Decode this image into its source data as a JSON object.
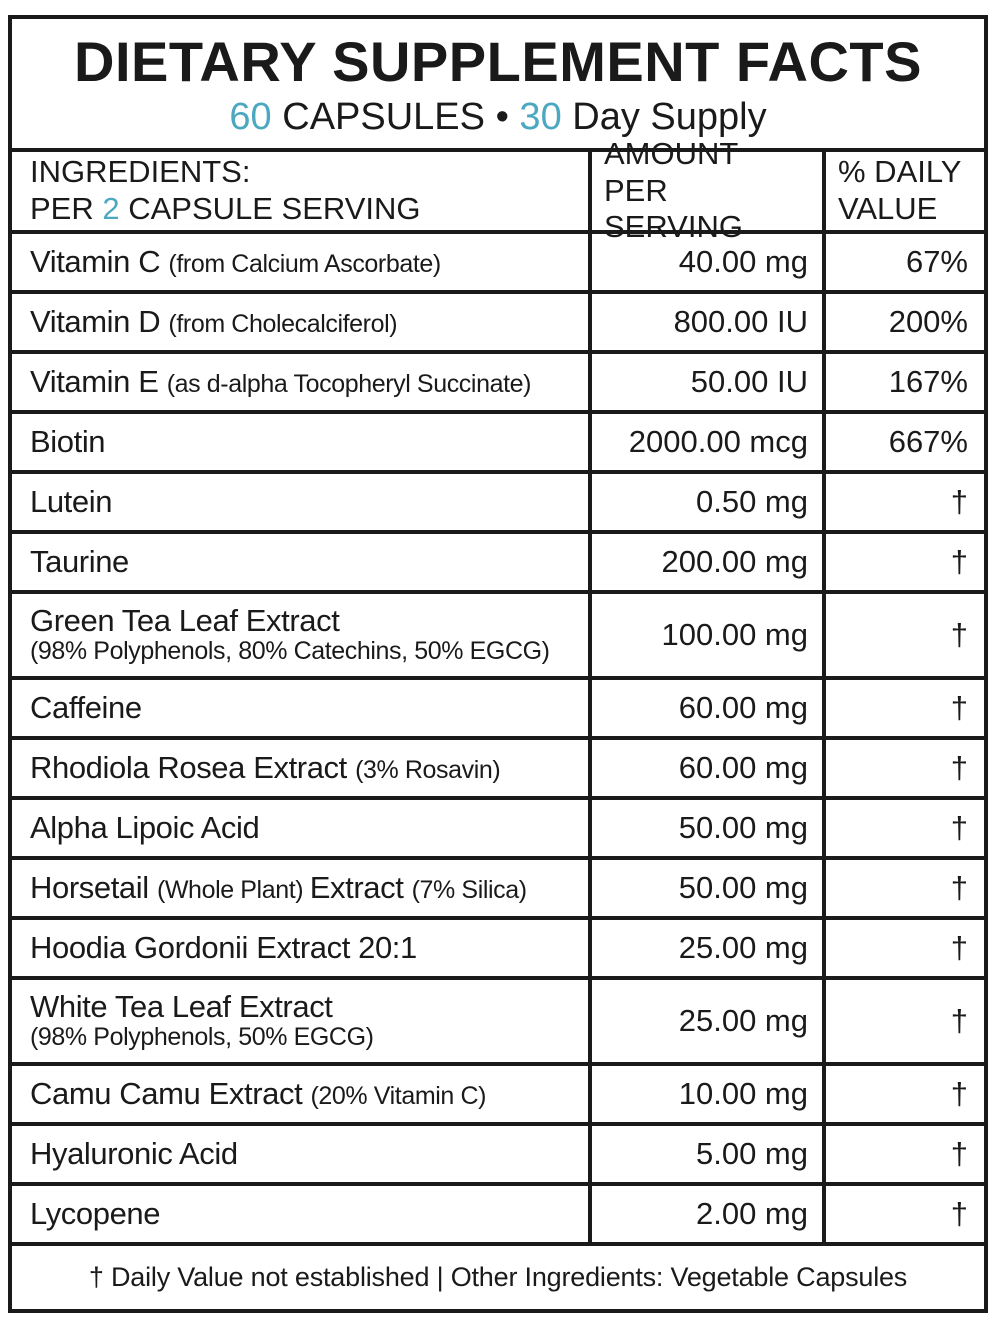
{
  "accent_color": "#4CA8C0",
  "title": "DIETARY SUPPLEMENT FACTS",
  "subtitle_segments": [
    {
      "t": "60",
      "accent": true
    },
    {
      "t": " CAPSULES ",
      "accent": false
    },
    {
      "t": "•",
      "accent": false
    },
    {
      "t": " 30",
      "accent": true
    },
    {
      "t": " Day Supply",
      "accent": false
    }
  ],
  "header": {
    "ingredients_line1": "INGREDIENTS:",
    "ingredients_line2_segments": [
      {
        "t": "PER ",
        "accent": false
      },
      {
        "t": "2",
        "accent": true
      },
      {
        "t": " CAPSULE SERVING",
        "accent": false
      }
    ],
    "amount_line1": "AMOUNT",
    "amount_line2": "PER SERVING",
    "dv_line1": "% DAILY",
    "dv_line2": "VALUE"
  },
  "rows": [
    {
      "segments": [
        {
          "t": "Vitamin C ",
          "small": false
        },
        {
          "t": "(from Calcium Ascorbate)",
          "small": true
        }
      ],
      "amount": "40.00 mg",
      "dv": "67%"
    },
    {
      "segments": [
        {
          "t": "Vitamin D ",
          "small": false
        },
        {
          "t": "(from Cholecalciferol)",
          "small": true
        }
      ],
      "amount": "800.00 IU",
      "dv": "200%"
    },
    {
      "segments": [
        {
          "t": "Vitamin E ",
          "small": false
        },
        {
          "t": "(as d-alpha Tocopheryl Succinate)",
          "small": true
        }
      ],
      "amount": "50.00 IU",
      "dv": "167%"
    },
    {
      "segments": [
        {
          "t": "Biotin",
          "small": false
        }
      ],
      "amount": "2000.00 mcg",
      "dv": "667%"
    },
    {
      "segments": [
        {
          "t": "Lutein",
          "small": false
        }
      ],
      "amount": "0.50 mg",
      "dv": "†"
    },
    {
      "segments": [
        {
          "t": "Taurine",
          "small": false
        }
      ],
      "amount": "200.00 mg",
      "dv": "†"
    },
    {
      "segments": [
        {
          "t": "Green Tea Leaf Extract",
          "small": false
        }
      ],
      "sub": "(98% Polyphenols, 80% Catechins, 50% EGCG)",
      "tall": true,
      "amount": "100.00 mg",
      "dv": "†"
    },
    {
      "segments": [
        {
          "t": "Caffeine",
          "small": false
        }
      ],
      "amount": "60.00 mg",
      "dv": "†"
    },
    {
      "segments": [
        {
          "t": "Rhodiola Rosea Extract ",
          "small": false
        },
        {
          "t": "(3% Rosavin)",
          "small": true
        }
      ],
      "amount": "60.00 mg",
      "dv": "†"
    },
    {
      "segments": [
        {
          "t": "Alpha Lipoic Acid",
          "small": false
        }
      ],
      "amount": "50.00 mg",
      "dv": "†"
    },
    {
      "segments": [
        {
          "t": "Horsetail ",
          "small": false
        },
        {
          "t": "(Whole Plant) ",
          "small": true
        },
        {
          "t": "Extract ",
          "small": false
        },
        {
          "t": "(7% Silica)",
          "small": true
        }
      ],
      "amount": "50.00 mg",
      "dv": "†"
    },
    {
      "segments": [
        {
          "t": "Hoodia Gordonii Extract 20:1",
          "small": false
        }
      ],
      "amount": "25.00 mg",
      "dv": "†"
    },
    {
      "segments": [
        {
          "t": "White Tea Leaf Extract",
          "small": false
        }
      ],
      "sub": "(98% Polyphenols, 50% EGCG)",
      "tall": true,
      "amount": "25.00 mg",
      "dv": "†"
    },
    {
      "segments": [
        {
          "t": "Camu Camu Extract ",
          "small": false
        },
        {
          "t": "(20% Vitamin C)",
          "small": true
        }
      ],
      "amount": "10.00 mg",
      "dv": "†"
    },
    {
      "segments": [
        {
          "t": "Hyaluronic Acid",
          "small": false
        }
      ],
      "amount": "5.00 mg",
      "dv": "†"
    },
    {
      "segments": [
        {
          "t": "Lycopene",
          "small": false
        }
      ],
      "amount": "2.00 mg",
      "dv": "†"
    }
  ],
  "footer": "† Daily Value not established | Other Ingredients: Vegetable Capsules"
}
